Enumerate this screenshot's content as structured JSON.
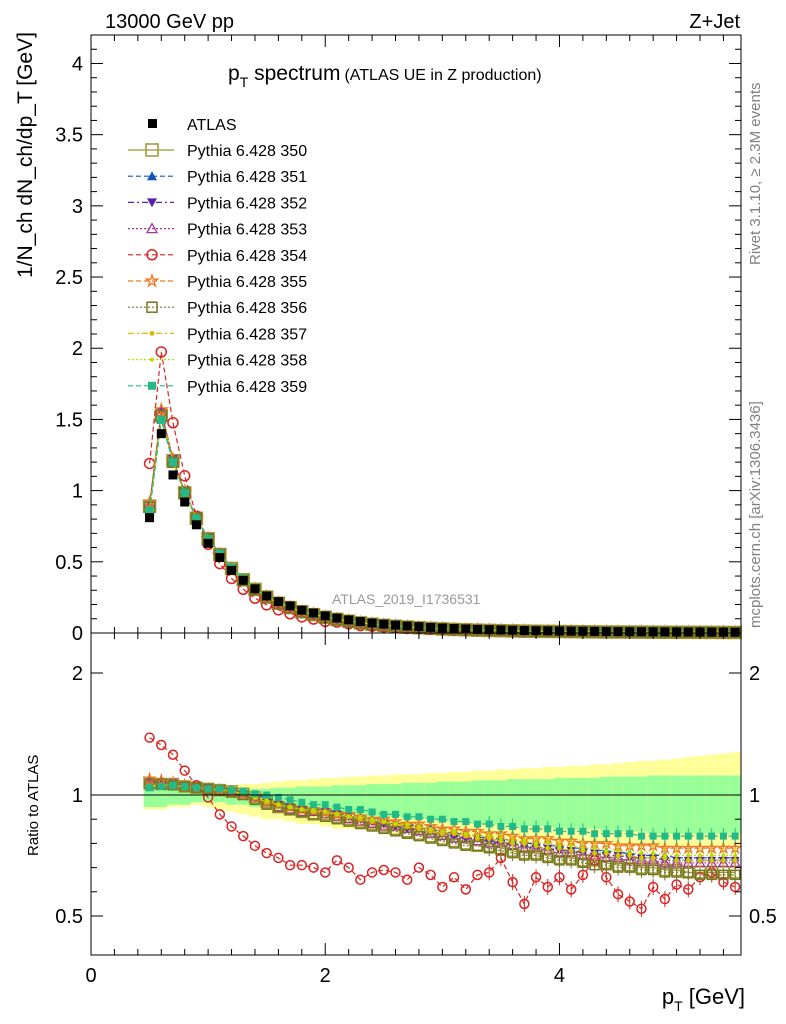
{
  "header": {
    "left": "13000 GeV pp",
    "right": "Z+Jet"
  },
  "title": {
    "main": "p",
    "main_sub": "T",
    "main_rest": " spectrum",
    "paren": "(ATLAS UE in Z production)"
  },
  "side_labels": {
    "rivet": "Rivet 3.1.10, ≥ 2.3M events",
    "mcplots": "mcplots.cern.ch [arXiv:1306.3436]"
  },
  "watermark": "ATLAS_2019_I1736531",
  "axes": {
    "xlabel": "p_T [GeV]",
    "xlabel_main": "p",
    "xlabel_sub": "T",
    "xlabel_unit": " [GeV]",
    "ylabel_top": "1/N_ch dN_ch/dp_T [GeV]",
    "ylabel_bottom": "Ratio to ATLAS",
    "xlim": [
      0,
      5.55
    ],
    "ylim_top": [
      0,
      4.2
    ],
    "ylim_bottom": [
      0.34,
      2.3
    ],
    "xticks": [
      "0",
      "2",
      "4"
    ],
    "yticks_top": [
      "0",
      "0.5",
      "1",
      "1.5",
      "2",
      "2.5",
      "3",
      "3.5",
      "4"
    ],
    "yticks_bottom": [
      "0.5",
      "1",
      "2"
    ]
  },
  "chart_data": {
    "type": "scatter",
    "x": [
      0.5,
      0.6,
      0.7,
      0.8,
      0.9,
      1.0,
      1.1,
      1.2,
      1.3,
      1.4,
      1.5,
      1.6,
      1.7,
      1.8,
      1.9,
      2.0,
      2.1,
      2.2,
      2.3,
      2.4,
      2.5,
      2.6,
      2.7,
      2.8,
      2.9,
      3.0,
      3.1,
      3.2,
      3.3,
      3.4,
      3.5,
      3.6,
      3.7,
      3.8,
      3.9,
      4.0,
      4.1,
      4.2,
      4.3,
      4.4,
      4.5,
      4.6,
      4.7,
      4.8,
      4.9,
      5.0,
      5.1,
      5.2,
      5.3,
      5.4,
      5.5
    ],
    "data": {
      "name": "ATLAS",
      "values": [
        0.81,
        1.4,
        1.11,
        0.92,
        0.76,
        0.63,
        0.53,
        0.44,
        0.37,
        0.31,
        0.26,
        0.22,
        0.19,
        0.16,
        0.14,
        0.12,
        0.105,
        0.092,
        0.08,
        0.07,
        0.062,
        0.055,
        0.049,
        0.044,
        0.039,
        0.035,
        0.031,
        0.028,
        0.025,
        0.023,
        0.021,
        0.019,
        0.017,
        0.016,
        0.015,
        0.014,
        0.013,
        0.012,
        0.011,
        0.01,
        0.0095,
        0.009,
        0.0085,
        0.008,
        0.0075,
        0.007,
        0.0066,
        0.0062,
        0.0058,
        0.0055,
        0.0052
      ]
    },
    "band": {
      "inner_low": [
        0.95,
        0.95,
        0.96,
        0.96,
        0.97,
        0.97,
        0.97,
        0.96,
        0.96,
        0.95,
        0.95,
        0.94,
        0.94,
        0.93,
        0.93,
        0.93,
        0.92,
        0.92,
        0.92,
        0.91,
        0.91,
        0.91,
        0.9,
        0.9,
        0.9,
        0.89,
        0.89,
        0.89,
        0.88,
        0.88,
        0.88,
        0.87,
        0.87,
        0.87,
        0.87,
        0.86,
        0.86,
        0.86,
        0.86,
        0.85,
        0.85,
        0.85,
        0.85,
        0.84,
        0.84,
        0.84,
        0.84,
        0.84,
        0.84,
        0.84,
        0.84
      ],
      "inner_high": [
        1.05,
        1.05,
        1.04,
        1.04,
        1.03,
        1.03,
        1.03,
        1.04,
        1.04,
        1.05,
        1.05,
        1.06,
        1.06,
        1.07,
        1.07,
        1.07,
        1.08,
        1.08,
        1.08,
        1.09,
        1.09,
        1.09,
        1.1,
        1.1,
        1.1,
        1.11,
        1.11,
        1.11,
        1.12,
        1.12,
        1.12,
        1.13,
        1.13,
        1.13,
        1.13,
        1.14,
        1.14,
        1.14,
        1.14,
        1.15,
        1.15,
        1.15,
        1.15,
        1.16,
        1.16,
        1.16,
        1.16,
        1.16,
        1.16,
        1.16,
        1.16
      ],
      "outer_low": [
        0.94,
        0.94,
        0.95,
        0.95,
        0.96,
        0.95,
        0.94,
        0.93,
        0.92,
        0.91,
        0.9,
        0.9,
        0.89,
        0.88,
        0.88,
        0.87,
        0.86,
        0.86,
        0.86,
        0.85,
        0.85,
        0.84,
        0.84,
        0.84,
        0.84,
        0.83,
        0.83,
        0.83,
        0.82,
        0.82,
        0.82,
        0.81,
        0.81,
        0.81,
        0.81,
        0.8,
        0.8,
        0.8,
        0.8,
        0.8,
        0.79,
        0.79,
        0.79,
        0.79,
        0.79,
        0.79,
        0.79,
        0.79,
        0.79,
        0.79,
        0.79
      ],
      "outer_high": [
        1.06,
        1.06,
        1.05,
        1.05,
        1.05,
        1.06,
        1.07,
        1.08,
        1.09,
        1.09,
        1.1,
        1.11,
        1.12,
        1.12,
        1.13,
        1.14,
        1.14,
        1.15,
        1.15,
        1.16,
        1.16,
        1.17,
        1.17,
        1.17,
        1.18,
        1.18,
        1.19,
        1.19,
        1.2,
        1.2,
        1.21,
        1.21,
        1.22,
        1.22,
        1.23,
        1.23,
        1.24,
        1.24,
        1.25,
        1.25,
        1.26,
        1.27,
        1.28,
        1.28,
        1.29,
        1.3,
        1.31,
        1.32,
        1.33,
        1.34,
        1.35
      ]
    },
    "series": [
      {
        "name": "Pythia 6.428 350",
        "color": "#999933",
        "marker": "open-square",
        "dash": "",
        "ratio": [
          1.1,
          1.09,
          1.09,
          1.07,
          1.06,
          1.05,
          1.04,
          1.03,
          1.01,
          0.99,
          0.97,
          0.95,
          0.94,
          0.93,
          0.92,
          0.92,
          0.91,
          0.9,
          0.89,
          0.88,
          0.87,
          0.86,
          0.85,
          0.84,
          0.83,
          0.82,
          0.81,
          0.8,
          0.79,
          0.79,
          0.78,
          0.77,
          0.76,
          0.76,
          0.75,
          0.74,
          0.74,
          0.73,
          0.73,
          0.72,
          0.71,
          0.71,
          0.7,
          0.7,
          0.69,
          0.69,
          0.68,
          0.68,
          0.68,
          0.68,
          0.68
        ]
      },
      {
        "name": "Pythia 6.428 351",
        "color": "#1155bb",
        "marker": "triangle-up",
        "dash": "5,3",
        "ratio": [
          1.06,
          1.07,
          1.08,
          1.07,
          1.06,
          1.06,
          1.05,
          1.04,
          1.02,
          1.0,
          0.99,
          0.97,
          0.96,
          0.95,
          0.94,
          0.94,
          0.93,
          0.92,
          0.91,
          0.9,
          0.89,
          0.88,
          0.88,
          0.87,
          0.86,
          0.85,
          0.84,
          0.84,
          0.83,
          0.82,
          0.82,
          0.81,
          0.8,
          0.8,
          0.79,
          0.79,
          0.78,
          0.78,
          0.77,
          0.77,
          0.76,
          0.76,
          0.75,
          0.75,
          0.75,
          0.74,
          0.74,
          0.74,
          0.74,
          0.74,
          0.74
        ]
      },
      {
        "name": "Pythia 6.428 352",
        "color": "#5522aa",
        "marker": "triangle-down",
        "dash": "6,3,2,3",
        "ratio": [
          1.11,
          1.11,
          1.1,
          1.08,
          1.07,
          1.06,
          1.05,
          1.03,
          1.01,
          0.99,
          0.97,
          0.96,
          0.95,
          0.94,
          0.93,
          0.93,
          0.92,
          0.91,
          0.9,
          0.89,
          0.88,
          0.87,
          0.86,
          0.86,
          0.85,
          0.84,
          0.83,
          0.82,
          0.82,
          0.81,
          0.8,
          0.8,
          0.79,
          0.78,
          0.78,
          0.77,
          0.77,
          0.76,
          0.76,
          0.75,
          0.75,
          0.74,
          0.74,
          0.74,
          0.73,
          0.73,
          0.73,
          0.73,
          0.73,
          0.73,
          0.73
        ]
      },
      {
        "name": "Pythia 6.428 353",
        "color": "#aa3399",
        "marker": "open-triangle",
        "dash": "2,2",
        "ratio": [
          1.12,
          1.11,
          1.1,
          1.08,
          1.07,
          1.05,
          1.04,
          1.03,
          1.01,
          0.99,
          0.97,
          0.95,
          0.94,
          0.93,
          0.93,
          0.92,
          0.91,
          0.9,
          0.89,
          0.88,
          0.87,
          0.87,
          0.86,
          0.85,
          0.84,
          0.83,
          0.82,
          0.82,
          0.81,
          0.8,
          0.8,
          0.79,
          0.78,
          0.78,
          0.77,
          0.76,
          0.76,
          0.75,
          0.75,
          0.74,
          0.74,
          0.73,
          0.73,
          0.73,
          0.72,
          0.72,
          0.72,
          0.72,
          0.72,
          0.72,
          0.72
        ]
      },
      {
        "name": "Pythia 6.428 354",
        "color": "#dd2222",
        "marker": "open-circle",
        "dash": "5,3",
        "ratio": [
          1.47,
          1.41,
          1.33,
          1.2,
          1.08,
          0.99,
          0.92,
          0.87,
          0.83,
          0.79,
          0.76,
          0.74,
          0.71,
          0.71,
          0.7,
          0.68,
          0.73,
          0.7,
          0.65,
          0.68,
          0.69,
          0.68,
          0.65,
          0.7,
          0.67,
          0.62,
          0.66,
          0.61,
          0.67,
          0.68,
          0.74,
          0.64,
          0.55,
          0.66,
          0.62,
          0.66,
          0.61,
          0.67,
          0.73,
          0.66,
          0.59,
          0.56,
          0.53,
          0.62,
          0.57,
          0.63,
          0.61,
          0.66,
          0.68,
          0.64,
          0.62
        ]
      },
      {
        "name": "Pythia 6.428 355",
        "color": "#ee7722",
        "marker": "open-star",
        "dash": "5,3",
        "ratio": [
          1.13,
          1.12,
          1.1,
          1.08,
          1.06,
          1.05,
          1.04,
          1.02,
          1.0,
          0.99,
          0.97,
          0.96,
          0.95,
          0.94,
          0.94,
          0.93,
          0.92,
          0.92,
          0.91,
          0.9,
          0.9,
          0.89,
          0.88,
          0.88,
          0.87,
          0.86,
          0.86,
          0.85,
          0.85,
          0.84,
          0.84,
          0.83,
          0.82,
          0.82,
          0.82,
          0.81,
          0.81,
          0.8,
          0.8,
          0.8,
          0.79,
          0.79,
          0.79,
          0.79,
          0.78,
          0.78,
          0.78,
          0.78,
          0.78,
          0.78,
          0.78
        ]
      },
      {
        "name": "Pythia 6.428 356",
        "color": "#777722",
        "marker": "open-square-small",
        "dash": "2,2",
        "ratio": [
          1.09,
          1.09,
          1.08,
          1.07,
          1.06,
          1.05,
          1.04,
          1.02,
          1.0,
          0.98,
          0.96,
          0.95,
          0.94,
          0.93,
          0.92,
          0.91,
          0.9,
          0.89,
          0.88,
          0.87,
          0.86,
          0.85,
          0.84,
          0.83,
          0.82,
          0.81,
          0.8,
          0.79,
          0.79,
          0.78,
          0.77,
          0.76,
          0.75,
          0.75,
          0.74,
          0.73,
          0.73,
          0.72,
          0.71,
          0.71,
          0.7,
          0.7,
          0.69,
          0.69,
          0.68,
          0.68,
          0.68,
          0.67,
          0.67,
          0.67,
          0.67
        ]
      },
      {
        "name": "Pythia 6.428 357",
        "color": "#ddbb00",
        "marker": "dot",
        "dash": "6,3,2,3",
        "ratio": [
          1.07,
          1.08,
          1.08,
          1.07,
          1.06,
          1.05,
          1.04,
          1.03,
          1.01,
          0.99,
          0.97,
          0.96,
          0.95,
          0.94,
          0.93,
          0.93,
          0.92,
          0.91,
          0.9,
          0.89,
          0.89,
          0.88,
          0.87,
          0.86,
          0.85,
          0.84,
          0.84,
          0.83,
          0.82,
          0.82,
          0.81,
          0.8,
          0.8,
          0.79,
          0.78,
          0.78,
          0.77,
          0.77,
          0.76,
          0.76,
          0.75,
          0.75,
          0.74,
          0.74,
          0.74,
          0.73,
          0.73,
          0.73,
          0.73,
          0.73,
          0.73
        ]
      },
      {
        "name": "Pythia 6.428 358",
        "color": "#bbdd00",
        "marker": "dot-small",
        "dash": "2,2",
        "ratio": [
          1.08,
          1.08,
          1.08,
          1.07,
          1.06,
          1.05,
          1.04,
          1.03,
          1.01,
          0.99,
          0.98,
          0.96,
          0.95,
          0.94,
          0.94,
          0.93,
          0.92,
          0.91,
          0.91,
          0.9,
          0.89,
          0.88,
          0.88,
          0.87,
          0.86,
          0.85,
          0.85,
          0.84,
          0.83,
          0.83,
          0.82,
          0.81,
          0.81,
          0.8,
          0.8,
          0.79,
          0.79,
          0.78,
          0.78,
          0.77,
          0.77,
          0.76,
          0.76,
          0.76,
          0.75,
          0.75,
          0.75,
          0.75,
          0.75,
          0.75,
          0.75
        ]
      },
      {
        "name": "Pythia 6.428 359",
        "color": "#22bb88",
        "marker": "filled-square-small",
        "dash": "5,3",
        "ratio": [
          1.06,
          1.07,
          1.08,
          1.07,
          1.06,
          1.05,
          1.05,
          1.04,
          1.03,
          1.01,
          1.0,
          0.99,
          0.98,
          0.97,
          0.96,
          0.96,
          0.95,
          0.94,
          0.94,
          0.93,
          0.92,
          0.92,
          0.91,
          0.91,
          0.9,
          0.9,
          0.89,
          0.89,
          0.88,
          0.88,
          0.87,
          0.87,
          0.86,
          0.86,
          0.86,
          0.85,
          0.85,
          0.85,
          0.84,
          0.84,
          0.84,
          0.84,
          0.83,
          0.83,
          0.83,
          0.83,
          0.83,
          0.83,
          0.83,
          0.83,
          0.83
        ]
      }
    ],
    "legend_data_label": "ATLAS",
    "grid": false,
    "legend_position": "top-left"
  }
}
